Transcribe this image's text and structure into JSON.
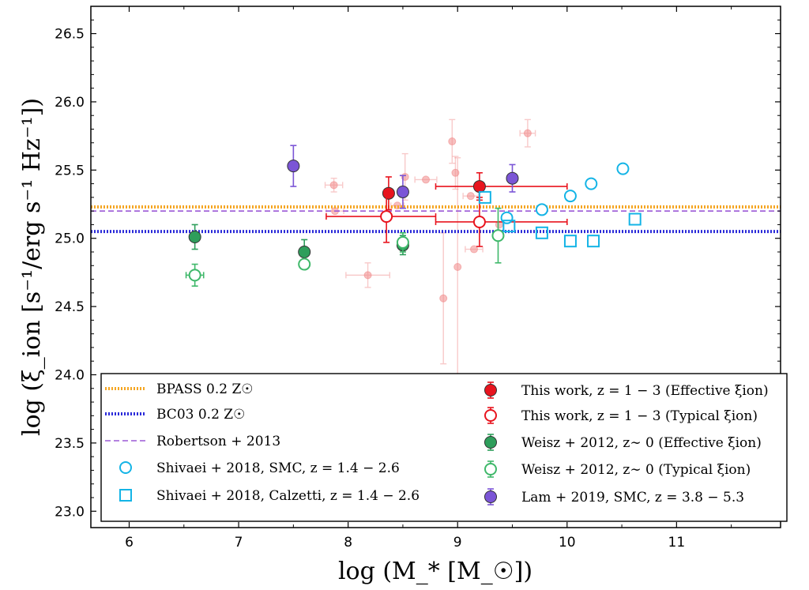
{
  "chart_data": {
    "type": "scatter",
    "xlabel": "log (M_* [M_☉])",
    "ylabel": "log (ξ_ion [s⁻¹/erg s⁻¹ Hz⁻¹])",
    "xlim": [
      5.65,
      11.95
    ],
    "ylim": [
      22.88,
      26.7
    ],
    "xticks": [
      "6",
      "7",
      "8",
      "9",
      "10",
      "11"
    ],
    "yticks": [
      "23.0",
      "23.5",
      "24.0",
      "24.5",
      "25.0",
      "25.5",
      "26.0",
      "26.5"
    ],
    "grid": false,
    "legend_position": "bottom",
    "reference_lines": [
      {
        "name": "BPASS 0.2 Z☉",
        "y": 25.23,
        "color": "#f5a623",
        "style": "dotted"
      },
      {
        "name": "BC03 0.2 Z☉",
        "y": 25.05,
        "color": "#2b2bd9",
        "style": "dotted"
      },
      {
        "name": "Robertson+2013",
        "y": 25.2,
        "color": "#9b59d6",
        "style": "dashed"
      }
    ],
    "series": [
      {
        "name": "This work, z = 1 − 3 (Effective ξ_ion)",
        "color": "#e8141e",
        "marker": "circle-filled",
        "points": [
          {
            "x": 8.37,
            "y": 25.33,
            "yerr": 0.12
          },
          {
            "x": 9.2,
            "y": 25.38,
            "xerr": [
              0.4,
              0.8
            ],
            "yerr": 0.1
          }
        ]
      },
      {
        "name": "This work, z = 1 − 3 (Typical ξ_ion)",
        "color": "#e8141e",
        "marker": "circle-open",
        "points": [
          {
            "x": 8.35,
            "y": 25.16,
            "xerr": [
              0.55,
              0.45
            ],
            "yerr": 0.19
          },
          {
            "x": 9.2,
            "y": 25.12,
            "xerr": [
              0.4,
              0.8
            ],
            "yerr": 0.18
          }
        ]
      },
      {
        "name": "Weisz+2012, z ∼ 0 (Effective ξ_ion)",
        "color": "#2e9e5b",
        "marker": "circle-filled",
        "points": [
          {
            "x": 6.6,
            "y": 25.01,
            "yerr": 0.09
          },
          {
            "x": 7.6,
            "y": 24.9,
            "yerr": 0.09
          },
          {
            "x": 8.5,
            "y": 24.95,
            "yerr": 0.07
          }
        ]
      },
      {
        "name": "Weisz+2012, z ∼ 0 (Typical ξ_ion)",
        "color": "#3fb86a",
        "marker": "circle-open",
        "points": [
          {
            "x": 6.6,
            "y": 24.73,
            "xerr": 0.08,
            "yerr": 0.08
          },
          {
            "x": 7.6,
            "y": 24.81
          },
          {
            "x": 8.5,
            "y": 24.97,
            "yerr": 0.07
          },
          {
            "x": 9.37,
            "y": 25.02,
            "yerr": 0.2
          }
        ]
      },
      {
        "name": "Shivaei+2018, SMC, z = 1.4 − 2.6",
        "color": "#14b4e6",
        "marker": "circle-open",
        "points": [
          {
            "x": 9.45,
            "y": 25.15
          },
          {
            "x": 9.77,
            "y": 25.21
          },
          {
            "x": 10.03,
            "y": 25.31
          },
          {
            "x": 10.22,
            "y": 25.4
          },
          {
            "x": 10.51,
            "y": 25.51
          }
        ]
      },
      {
        "name": "Shivaei+2018, Calzetti, z = 1.4 − 2.6",
        "color": "#14b4e6",
        "marker": "square-open",
        "points": [
          {
            "x": 9.25,
            "y": 25.3
          },
          {
            "x": 9.47,
            "y": 25.09
          },
          {
            "x": 9.77,
            "y": 25.04
          },
          {
            "x": 10.03,
            "y": 24.98
          },
          {
            "x": 10.24,
            "y": 24.98
          },
          {
            "x": 10.62,
            "y": 25.14
          }
        ]
      },
      {
        "name": "Lam+2019, SMC, z = 3.8 − 5.3",
        "color": "#7b55d6",
        "marker": "circle-filled",
        "points": [
          {
            "x": 7.5,
            "y": 25.53,
            "yerr": 0.15
          },
          {
            "x": 8.5,
            "y": 25.34,
            "yerr": 0.12
          },
          {
            "x": 9.5,
            "y": 25.44,
            "yerr": 0.1
          }
        ]
      },
      {
        "name": "",
        "color": "#f08a8a",
        "marker": "circle-faded",
        "points": [
          {
            "x": 7.87,
            "y": 25.39,
            "xerr": 0.08,
            "yerr": 0.05
          },
          {
            "x": 7.88,
            "y": 25.2,
            "xerr": 0.08
          },
          {
            "x": 8.18,
            "y": 24.73,
            "xerr": 0.2,
            "yerr": 0.09
          },
          {
            "x": 8.45,
            "y": 25.24,
            "xerr": 0.06
          },
          {
            "x": 8.52,
            "y": 25.45,
            "yerr": 0.17
          },
          {
            "x": 8.71,
            "y": 25.43,
            "xerr": 0.1
          },
          {
            "x": 8.87,
            "y": 24.56,
            "yerr": 0.48
          },
          {
            "x": 8.95,
            "y": 25.71,
            "yerr": 0.16
          },
          {
            "x": 8.98,
            "y": 25.48,
            "yerr": 0.12
          },
          {
            "x": 9.0,
            "y": 24.79,
            "yerr": 0.8
          },
          {
            "x": 9.12,
            "y": 25.31,
            "xerr": 0.07
          },
          {
            "x": 9.15,
            "y": 24.92,
            "xerr": 0.08
          },
          {
            "x": 9.38,
            "y": 25.1
          },
          {
            "x": 9.64,
            "y": 25.77,
            "xerr": 0.07,
            "yerr": 0.1
          }
        ]
      }
    ]
  },
  "legend": {
    "left": [
      {
        "label": "BPASS 0.2 Z☉",
        "symbol": "line-dotted",
        "color": "#f5a623"
      },
      {
        "label": "BC03 0.2 Z☉",
        "symbol": "line-dotted",
        "color": "#2b2bd9"
      },
      {
        "label": "Robertson + 2013",
        "symbol": "line-dashed",
        "color": "#9b59d6"
      },
      {
        "label": "Shivaei + 2018,  SMC,  z = 1.4 − 2.6",
        "symbol": "circle-open",
        "color": "#14b4e6"
      },
      {
        "label": "Shivaei + 2018,  Calzetti,  z = 1.4 − 2.6",
        "symbol": "square-open",
        "color": "#14b4e6"
      }
    ],
    "right": [
      {
        "label": "This work,  z = 1 − 3 (Effective ξion)",
        "symbol": "circle-filled-err",
        "color": "#e8141e"
      },
      {
        "label": "This work,  z = 1 − 3 (Typical ξion)",
        "symbol": "circle-open-err",
        "color": "#e8141e"
      },
      {
        "label": "Weisz + 2012,  z∼ 0 (Effective ξion)",
        "symbol": "circle-filled-err",
        "color": "#2e9e5b"
      },
      {
        "label": "Weisz + 2012,  z∼ 0 (Typical ξion)",
        "symbol": "circle-open-err",
        "color": "#3fb86a"
      },
      {
        "label": "Lam + 2019,  SMC,  z = 3.8 − 5.3",
        "symbol": "circle-filled-err",
        "color": "#7b55d6"
      }
    ]
  }
}
